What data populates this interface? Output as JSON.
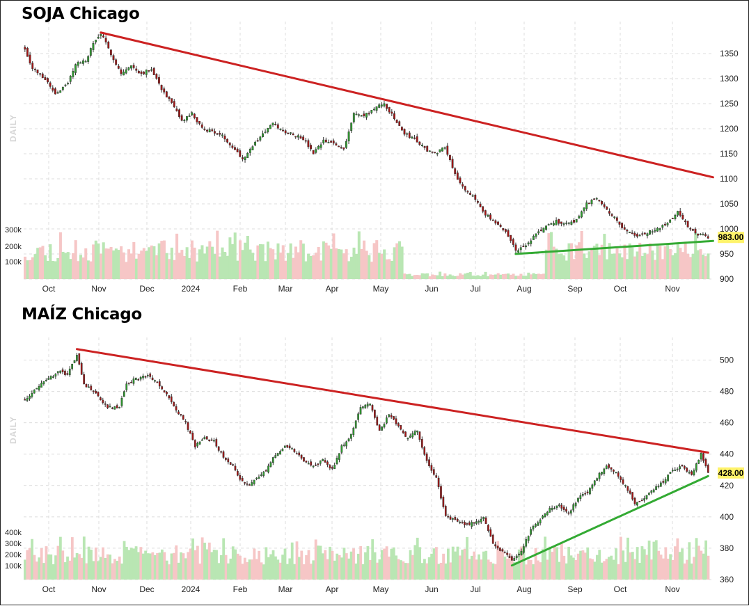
{
  "chart_data": [
    {
      "type": "candlestick",
      "title": "SOJA Chicago",
      "watermark": "DAILY",
      "last_price_label": "983.00",
      "last_price": 983,
      "ylim": [
        900,
        1400
      ],
      "y_ticks": [
        "1350",
        "1300",
        "1250",
        "1200",
        "1150",
        "1100",
        "1050",
        "1000",
        "950",
        "900"
      ],
      "y_tick_values": [
        1350,
        1300,
        1250,
        1200,
        1150,
        1100,
        1050,
        1000,
        950,
        900
      ],
      "x_labels": [
        "Oct",
        "Nov",
        "Dec",
        "2024",
        "Feb",
        "Mar",
        "Apr",
        "May",
        "Jun",
        "Jul",
        "Aug",
        "Sep",
        "Oct",
        "Nov"
      ],
      "volume_ticks": [
        "300k",
        "200k",
        "100k"
      ],
      "volume_tick_values": [
        300000,
        200000,
        100000
      ],
      "anchors": [
        [
          0,
          1360
        ],
        [
          3,
          1320
        ],
        [
          8,
          1300
        ],
        [
          12,
          1270
        ],
        [
          17,
          1290
        ],
        [
          20,
          1330
        ],
        [
          24,
          1335
        ],
        [
          27,
          1370
        ],
        [
          30,
          1390
        ],
        [
          35,
          1340
        ],
        [
          38,
          1310
        ],
        [
          42,
          1325
        ],
        [
          46,
          1310
        ],
        [
          50,
          1320
        ],
        [
          54,
          1280
        ],
        [
          58,
          1250
        ],
        [
          62,
          1215
        ],
        [
          66,
          1230
        ],
        [
          70,
          1200
        ],
        [
          74,
          1195
        ],
        [
          78,
          1185
        ],
        [
          82,
          1165
        ],
        [
          86,
          1140
        ],
        [
          90,
          1165
        ],
        [
          94,
          1190
        ],
        [
          98,
          1210
        ],
        [
          102,
          1195
        ],
        [
          106,
          1190
        ],
        [
          110,
          1180
        ],
        [
          114,
          1150
        ],
        [
          118,
          1175
        ],
        [
          122,
          1170
        ],
        [
          126,
          1160
        ],
        [
          130,
          1230
        ],
        [
          134,
          1225
        ],
        [
          138,
          1240
        ],
        [
          142,
          1250
        ],
        [
          146,
          1220
        ],
        [
          150,
          1190
        ],
        [
          154,
          1180
        ],
        [
          158,
          1160
        ],
        [
          162,
          1150
        ],
        [
          166,
          1165
        ],
        [
          170,
          1110
        ],
        [
          174,
          1075
        ],
        [
          178,
          1060
        ],
        [
          182,
          1030
        ],
        [
          186,
          1010
        ],
        [
          190,
          995
        ],
        [
          194,
          958
        ],
        [
          198,
          965
        ],
        [
          202,
          990
        ],
        [
          206,
          1005
        ],
        [
          210,
          1015
        ],
        [
          214,
          1010
        ],
        [
          218,
          1018
        ],
        [
          222,
          1050
        ],
        [
          226,
          1063
        ],
        [
          230,
          1040
        ],
        [
          234,
          1015
        ],
        [
          238,
          995
        ],
        [
          242,
          985
        ],
        [
          246,
          992
        ],
        [
          250,
          1000
        ],
        [
          254,
          1010
        ],
        [
          258,
          1035
        ],
        [
          262,
          1005
        ],
        [
          266,
          990
        ],
        [
          270,
          983
        ]
      ],
      "trendlines": [
        {
          "color": "#cc2222",
          "from": [
            30,
            1392
          ],
          "to": [
            272,
            1103
          ]
        },
        {
          "color": "#33aa33",
          "from": [
            194,
            950
          ],
          "to": [
            272,
            976
          ]
        }
      ]
    },
    {
      "type": "candlestick",
      "title": "MAÍZ Chicago",
      "watermark": "DAILY",
      "last_price_label": "428.00",
      "last_price": 428,
      "ylim": [
        360,
        510
      ],
      "y_ticks": [
        "500",
        "480",
        "460",
        "440",
        "420",
        "400",
        "380",
        "360"
      ],
      "y_tick_values": [
        500,
        480,
        460,
        440,
        420,
        400,
        380,
        360
      ],
      "x_labels": [
        "Oct",
        "Nov",
        "Dec",
        "2024",
        "Feb",
        "Mar",
        "Apr",
        "May",
        "Jun",
        "Jul",
        "Aug",
        "Sep",
        "Oct",
        "Nov"
      ],
      "volume_ticks": [
        "400k",
        "300k",
        "200k",
        "100k"
      ],
      "volume_tick_values": [
        400000,
        300000,
        200000,
        100000
      ],
      "anchors": [
        [
          0,
          475
        ],
        [
          5,
          482
        ],
        [
          10,
          488
        ],
        [
          15,
          493
        ],
        [
          18,
          490
        ],
        [
          22,
          504
        ],
        [
          25,
          485
        ],
        [
          30,
          478
        ],
        [
          35,
          470
        ],
        [
          40,
          470
        ],
        [
          43,
          485
        ],
        [
          47,
          488
        ],
        [
          52,
          490
        ],
        [
          56,
          485
        ],
        [
          60,
          478
        ],
        [
          64,
          468
        ],
        [
          68,
          460
        ],
        [
          72,
          445
        ],
        [
          76,
          450
        ],
        [
          80,
          448
        ],
        [
          84,
          438
        ],
        [
          88,
          432
        ],
        [
          92,
          422
        ],
        [
          95,
          420
        ],
        [
          98,
          424
        ],
        [
          102,
          430
        ],
        [
          106,
          440
        ],
        [
          110,
          445
        ],
        [
          114,
          442
        ],
        [
          118,
          436
        ],
        [
          122,
          432
        ],
        [
          126,
          436
        ],
        [
          130,
          430
        ],
        [
          134,
          445
        ],
        [
          138,
          452
        ],
        [
          142,
          470
        ],
        [
          146,
          472
        ],
        [
          150,
          455
        ],
        [
          154,
          465
        ],
        [
          158,
          458
        ],
        [
          162,
          450
        ],
        [
          166,
          455
        ],
        [
          170,
          435
        ],
        [
          174,
          425
        ],
        [
          178,
          400
        ],
        [
          182,
          398
        ],
        [
          186,
          395
        ],
        [
          190,
          396
        ],
        [
          194,
          400
        ],
        [
          198,
          383
        ],
        [
          202,
          378
        ],
        [
          206,
          373
        ],
        [
          210,
          378
        ],
        [
          214,
          392
        ],
        [
          218,
          398
        ],
        [
          222,
          405
        ],
        [
          226,
          407
        ],
        [
          230,
          402
        ],
        [
          234,
          412
        ],
        [
          238,
          416
        ],
        [
          242,
          425
        ],
        [
          246,
          433
        ],
        [
          250,
          428
        ],
        [
          254,
          420
        ],
        [
          258,
          408
        ],
        [
          262,
          412
        ],
        [
          266,
          418
        ],
        [
          270,
          422
        ],
        [
          274,
          430
        ],
        [
          278,
          432
        ],
        [
          282,
          427
        ],
        [
          286,
          440
        ],
        [
          289,
          428
        ]
      ],
      "trendlines": [
        {
          "color": "#cc2222",
          "from": [
            22,
            507
          ],
          "to": [
            289,
            441
          ]
        },
        {
          "color": "#33aa33",
          "from": [
            206,
            369
          ],
          "to": [
            289,
            426
          ]
        }
      ]
    }
  ]
}
